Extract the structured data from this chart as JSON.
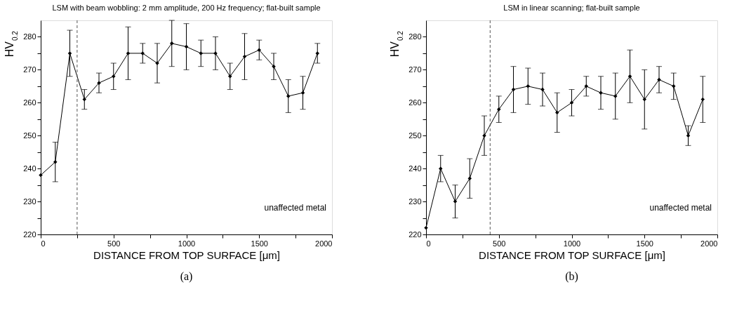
{
  "chart_data": [
    {
      "type": "line",
      "title": "LSM with beam wobbling: 2 mm amplitude, 200 Hz frequency; flat-built sample",
      "xlabel": "DISTANCE FROM TOP SURFACE [μm]",
      "ylabel": "HV$_{0.2}$",
      "x": [
        0,
        100,
        200,
        300,
        400,
        500,
        600,
        700,
        800,
        900,
        1000,
        1100,
        1200,
        1300,
        1400,
        1500,
        1600,
        1700,
        1800,
        1900
      ],
      "series": [
        {
          "color": "#000000",
          "values": [
            238,
            242,
            275,
            261,
            266,
            268,
            275,
            275,
            272,
            278,
            277,
            275,
            275,
            268,
            274,
            276,
            271,
            262,
            263,
            275
          ],
          "errors": [
            null,
            [
              236,
              248
            ],
            [
              268,
              282
            ],
            [
              258,
              264
            ],
            [
              263,
              269
            ],
            [
              264,
              272
            ],
            [
              267,
              283
            ],
            [
              272,
              278
            ],
            [
              266,
              278
            ],
            [
              271,
              285
            ],
            [
              270,
              284
            ],
            [
              271,
              279
            ],
            [
              270,
              280
            ],
            [
              264,
              272
            ],
            [
              267,
              281
            ],
            [
              273,
              279
            ],
            [
              267,
              275
            ],
            [
              257,
              267
            ],
            [
              258,
              268
            ],
            [
              272,
              278
            ]
          ]
        }
      ],
      "marker": "diamond",
      "line_style": "solid",
      "grid": false,
      "xlim": [
        0,
        2000
      ],
      "xticks": [
        0,
        {
          "value": 250,
          "label": null
        },
        500,
        {
          "value": 750,
          "label": null
        },
        1000,
        {
          "value": 1250,
          "label": null
        },
        1500,
        {
          "value": 1750,
          "label": null
        },
        2000
      ],
      "ylim": [
        220,
        285
      ],
      "yticks": [
        220,
        {
          "value": 225,
          "label": null
        },
        230,
        {
          "value": 235,
          "label": null
        },
        240,
        {
          "value": 245,
          "label": null
        },
        250,
        {
          "value": 255,
          "label": null
        },
        260,
        {
          "value": 265,
          "label": null
        },
        270,
        {
          "value": 275,
          "label": null
        },
        280
      ],
      "ref_lines": [
        {
          "axis": "x",
          "value": 250,
          "color": "#555555",
          "line_style": "dashed"
        }
      ],
      "annotations": [
        "unaffected metal",
        "(a)"
      ]
    },
    {
      "type": "line",
      "title": "LSM in linear scanning; flat-built sample",
      "xlabel": "DISTANCE FROM TOP SURFACE [μm]",
      "ylabel": "HV$_{0.2}$",
      "x": [
        0,
        100,
        200,
        300,
        400,
        500,
        600,
        700,
        800,
        900,
        1000,
        1100,
        1200,
        1300,
        1400,
        1500,
        1600,
        1700,
        1800,
        1900
      ],
      "series": [
        {
          "color": "#000000",
          "values": [
            222,
            240,
            230,
            237,
            250,
            258,
            264,
            265,
            264,
            257,
            260,
            265,
            263,
            262,
            268,
            261,
            267,
            265,
            250,
            261
          ],
          "errors": [
            null,
            [
              236,
              244
            ],
            [
              225,
              235
            ],
            [
              231,
              243
            ],
            [
              244,
              256
            ],
            [
              254,
              262
            ],
            [
              257,
              271
            ],
            [
              259.5,
              270.5
            ],
            [
              259,
              269
            ],
            [
              251,
              263
            ],
            [
              256,
              264
            ],
            [
              262,
              268
            ],
            [
              258,
              268
            ],
            [
              255,
              269
            ],
            [
              260,
              276
            ],
            [
              252,
              270
            ],
            [
              263,
              271
            ],
            [
              261,
              269
            ],
            [
              247,
              253
            ],
            [
              254,
              268
            ]
          ]
        }
      ],
      "marker": "diamond",
      "line_style": "solid",
      "grid": false,
      "xlim": [
        0,
        2000
      ],
      "xticks": [
        0,
        {
          "value": 250,
          "label": null
        },
        500,
        {
          "value": 750,
          "label": null
        },
        1000,
        {
          "value": 1250,
          "label": null
        },
        1500,
        {
          "value": 1750,
          "label": null
        },
        2000
      ],
      "ylim": [
        220,
        285
      ],
      "yticks": [
        220,
        {
          "value": 225,
          "label": null
        },
        230,
        {
          "value": 235,
          "label": null
        },
        240,
        {
          "value": 245,
          "label": null
        },
        250,
        {
          "value": 255,
          "label": null
        },
        260,
        {
          "value": 265,
          "label": null
        },
        270,
        {
          "value": 275,
          "label": null
        },
        280
      ],
      "ref_lines": [
        {
          "axis": "x",
          "value": 440,
          "color": "#555555",
          "line_style": "dashed"
        }
      ],
      "annotations": [
        "unaffected metal",
        "(b)"
      ]
    }
  ]
}
